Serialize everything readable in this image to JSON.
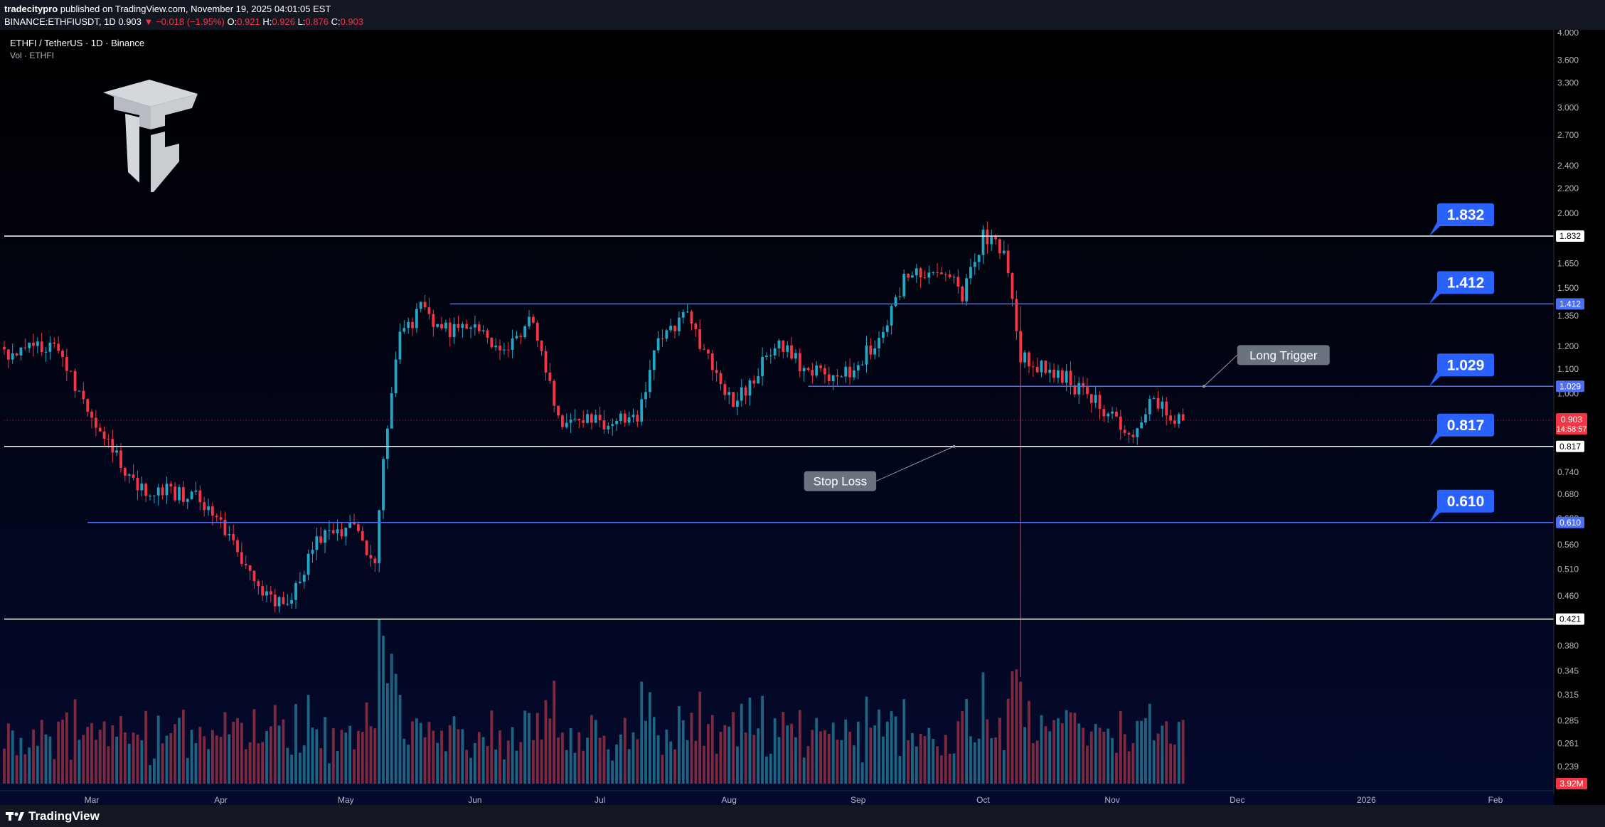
{
  "header": {
    "publisher": "tradecitypro",
    "published_text": " published on TradingView.com, November 19, 2025 04:01:05 EST",
    "symbol_line_prefix": "BINANCE:ETHFIUSDT, 1D 0.903",
    "change": "−0.018 (−1.95%)",
    "o_label": "O:",
    "o_value": "0.921",
    "h_label": "H:",
    "h_value": "0.926",
    "l_label": "L:",
    "l_value": "0.876",
    "c_label": "C:",
    "c_value": "0.903"
  },
  "legend": {
    "title": "ETHFI / TetherUS · 1D · Binance",
    "vol": "Vol · ETHFI"
  },
  "footer": {
    "brand": "TradingView"
  },
  "colors": {
    "up": "#22a7c4",
    "down": "#f23645",
    "vol_up": "#1f6f8b",
    "vol_down": "#8b2d43",
    "level_blue": "#4c6ef5",
    "level_white": "#ffffff",
    "label_blue": "#2962ff",
    "bg_top": "#000000",
    "bg_bottom": "#040a2e",
    "callout": "#6b7280"
  },
  "icons": {
    "watermark": "cube-logo-icon",
    "brand": "tradingview-logo-icon"
  },
  "chart_data": {
    "type": "candlestick",
    "scale": "log",
    "ylim": [
      0.23,
      4.0
    ],
    "x_range": [
      "2025-02-08",
      "2026-02-15"
    ],
    "x_ticks": [
      {
        "label": "Mar",
        "date": "2025-03-01"
      },
      {
        "label": "Apr",
        "date": "2025-04-01"
      },
      {
        "label": "May",
        "date": "2025-05-01"
      },
      {
        "label": "Jun",
        "date": "2025-06-01"
      },
      {
        "label": "Jul",
        "date": "2025-07-01"
      },
      {
        "label": "Aug",
        "date": "2025-08-01"
      },
      {
        "label": "Sep",
        "date": "2025-09-01"
      },
      {
        "label": "Oct",
        "date": "2025-10-01"
      },
      {
        "label": "Nov",
        "date": "2025-11-01"
      },
      {
        "label": "Dec",
        "date": "2025-12-01"
      },
      {
        "label": "2026",
        "date": "2026-01-01"
      },
      {
        "label": "Feb",
        "date": "2026-02-01"
      }
    ],
    "y_ticks": [
      "4.000",
      "3.600",
      "3.300",
      "3.000",
      "2.700",
      "2.400",
      "2.200",
      "2.000",
      "1.650",
      "1.500",
      "1.350",
      "1.200",
      "1.100",
      "1.000",
      "0.740",
      "0.680",
      "0.620",
      "0.560",
      "0.510",
      "0.460",
      "0.380",
      "0.345",
      "0.315",
      "0.285",
      "0.261",
      "0.239"
    ],
    "current_price": {
      "value": 0.903,
      "label": "0.903",
      "countdown": "14:58:57"
    },
    "volume_last": {
      "label": "3.92M"
    },
    "levels": [
      {
        "value": 1.832,
        "label": "1.832",
        "style": "white",
        "from": "2025-02-08",
        "tag": "1.832"
      },
      {
        "value": 1.412,
        "label": "1.412",
        "style": "blue",
        "from": "2025-05-26",
        "tag": "1.412"
      },
      {
        "value": 1.029,
        "label": "1.029",
        "style": "blue",
        "from": "2025-08-20",
        "tag": "1.029"
      },
      {
        "value": 0.817,
        "label": "0.817",
        "style": "white",
        "from": "2025-02-08",
        "tag": "0.817"
      },
      {
        "value": 0.61,
        "label": "0.610",
        "style": "blue",
        "from": "2025-02-28",
        "tag": "0.610"
      },
      {
        "value": 0.421,
        "label": "0.421",
        "style": "white",
        "from": "2025-02-08",
        "tag": ""
      }
    ],
    "annotations": [
      {
        "text": "Long Trigger",
        "box_date": "2025-12-01",
        "box_price": 1.16,
        "point_date": "2025-11-23",
        "point_price": 1.029
      },
      {
        "text": "Stop Loss",
        "box_date": "2025-08-19",
        "box_price": 0.715,
        "point_date": "2025-09-24",
        "point_price": 0.817
      }
    ],
    "anchors": [
      {
        "date": "2025-02-08",
        "price": 1.17
      },
      {
        "date": "2025-02-20",
        "price": 1.2
      },
      {
        "date": "2025-02-27",
        "price": 0.99
      },
      {
        "date": "2025-03-04",
        "price": 0.84
      },
      {
        "date": "2025-03-12",
        "price": 0.69
      },
      {
        "date": "2025-03-25",
        "price": 0.68
      },
      {
        "date": "2025-04-03",
        "price": 0.58
      },
      {
        "date": "2025-04-10",
        "price": 0.47
      },
      {
        "date": "2025-04-16",
        "price": 0.44
      },
      {
        "date": "2025-04-25",
        "price": 0.58
      },
      {
        "date": "2025-05-03",
        "price": 0.6
      },
      {
        "date": "2025-05-08",
        "price": 0.52
      },
      {
        "date": "2025-05-10",
        "price": 0.78
      },
      {
        "date": "2025-05-14",
        "price": 1.25
      },
      {
        "date": "2025-05-19",
        "price": 1.38
      },
      {
        "date": "2025-05-26",
        "price": 1.28
      },
      {
        "date": "2025-06-01",
        "price": 1.28
      },
      {
        "date": "2025-06-08",
        "price": 1.15
      },
      {
        "date": "2025-06-15",
        "price": 1.35
      },
      {
        "date": "2025-06-21",
        "price": 0.9
      },
      {
        "date": "2025-07-01",
        "price": 0.9
      },
      {
        "date": "2025-07-10",
        "price": 0.92
      },
      {
        "date": "2025-07-15",
        "price": 1.25
      },
      {
        "date": "2025-07-22",
        "price": 1.35
      },
      {
        "date": "2025-08-02",
        "price": 0.95
      },
      {
        "date": "2025-08-12",
        "price": 1.22
      },
      {
        "date": "2025-08-20",
        "price": 1.08
      },
      {
        "date": "2025-08-28",
        "price": 1.07
      },
      {
        "date": "2025-09-05",
        "price": 1.2
      },
      {
        "date": "2025-09-12",
        "price": 1.56
      },
      {
        "date": "2025-09-22",
        "price": 1.6
      },
      {
        "date": "2025-09-26",
        "price": 1.45
      },
      {
        "date": "2025-10-01",
        "price": 1.82
      },
      {
        "date": "2025-10-06",
        "price": 1.76
      },
      {
        "date": "2025-10-10",
        "price": 1.15
      },
      {
        "date": "2025-10-18",
        "price": 1.1
      },
      {
        "date": "2025-10-25",
        "price": 1.0
      },
      {
        "date": "2025-10-31",
        "price": 0.93
      },
      {
        "date": "2025-11-05",
        "price": 0.84
      },
      {
        "date": "2025-11-10",
        "price": 0.98
      },
      {
        "date": "2025-11-18",
        "price": 0.903
      }
    ]
  }
}
